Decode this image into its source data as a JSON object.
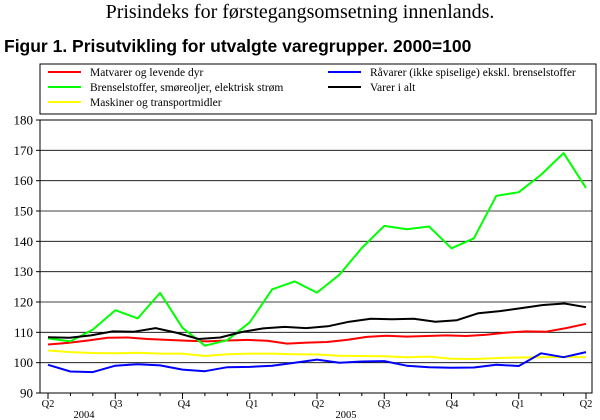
{
  "page_heading": "Prisindeks for førstegangsomsetning innenlands.",
  "chart_data": {
    "type": "line",
    "title": "Figur 1. Prisutvikling for utvalgte varegrupper. 2000=100",
    "xlabel": "",
    "ylabel": "",
    "ylim": [
      90,
      180
    ],
    "yticks": [
      90,
      100,
      110,
      120,
      130,
      140,
      150,
      160,
      170,
      180
    ],
    "grid": true,
    "legend_position": "top",
    "x_tick_labels": [
      "Q2",
      "Q3",
      "Q4",
      "Q1",
      "Q2",
      "Q3",
      "Q4",
      "Q1",
      "Q2"
    ],
    "year_labels": [
      "2004",
      "2005"
    ],
    "series": [
      {
        "name": "Matvarer og levende dyr",
        "color": "#ff0000",
        "values": [
          106.0,
          106.5,
          107.3,
          108.2,
          108.3,
          107.8,
          107.5,
          107.2,
          107.0,
          107.3,
          107.5,
          107.2,
          106.3,
          106.6,
          106.8,
          107.5,
          108.5,
          108.9,
          108.6,
          108.8,
          109.0,
          108.8,
          109.2,
          109.9,
          110.3,
          110.2,
          111.4,
          112.8
        ]
      },
      {
        "name": "Brenselstoffer, smøreoljer, elektrisk strøm",
        "color": "#00ff00",
        "values": [
          108.0,
          107.0,
          110.9,
          117.3,
          114.6,
          123.0,
          111.5,
          105.6,
          107.4,
          113.3,
          124.2,
          126.8,
          123.1,
          129.0,
          137.8,
          145.1,
          144.0,
          144.9,
          137.7,
          141.0,
          155.0,
          156.2,
          162.0,
          169.1,
          157.6
        ]
      },
      {
        "name": "Maskiner og transportmidler",
        "color": "#ffff00",
        "values": [
          104.0,
          103.5,
          103.2,
          103.1,
          103.3,
          103.0,
          103.0,
          102.2,
          102.8,
          103.0,
          103.0,
          102.8,
          102.7,
          102.3,
          102.2,
          102.1,
          101.8,
          102.0,
          101.3,
          101.2,
          101.5,
          101.7,
          101.8,
          101.9,
          101.8
        ]
      },
      {
        "name": "Råvarer (ikke spiselige) ekskl. brenselstoffer",
        "color": "#0000ff",
        "values": [
          99.3,
          97.1,
          96.9,
          99.0,
          99.5,
          99.1,
          97.7,
          97.2,
          98.5,
          98.6,
          99.0,
          100.0,
          101.0,
          100.0,
          100.4,
          100.5,
          99.0,
          98.5,
          98.3,
          98.4,
          99.3,
          98.9,
          103.1,
          101.8,
          103.5
        ]
      },
      {
        "name": "Varer i alt",
        "color": "#000000",
        "values": [
          108.4,
          108.2,
          109.0,
          110.3,
          110.2,
          111.4,
          109.8,
          107.8,
          108.3,
          110.1,
          111.3,
          111.8,
          111.4,
          112.0,
          113.5,
          114.5,
          114.3,
          114.5,
          113.5,
          114.0,
          116.3,
          117.0,
          118.0,
          119.0,
          119.5,
          118.3
        ]
      }
    ]
  }
}
